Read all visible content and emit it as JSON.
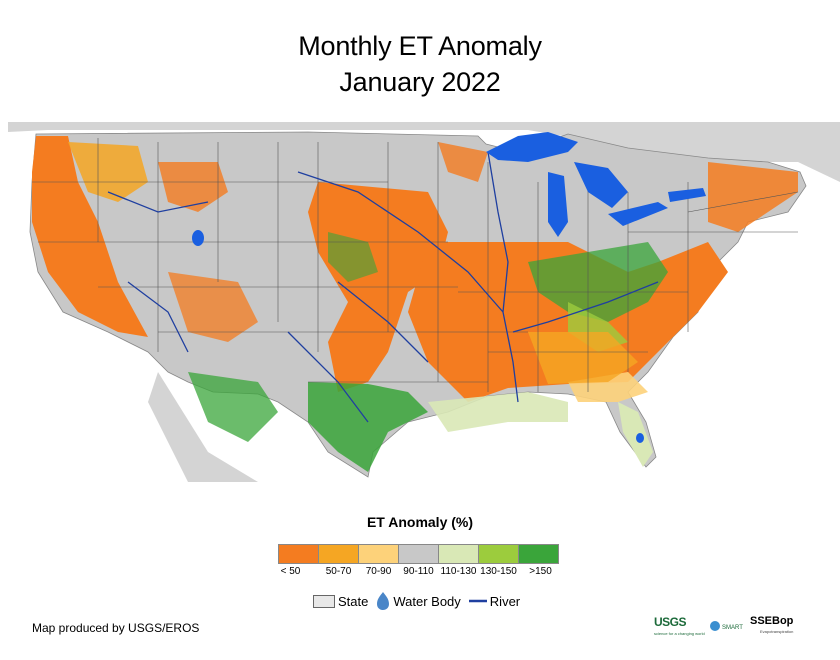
{
  "title": {
    "line1": "Monthly ET Anomaly",
    "line2": "January 2022"
  },
  "legend": {
    "title": "ET Anomaly (%)",
    "classes": [
      {
        "label": "< 50",
        "color": "#f47c20"
      },
      {
        "label": "50-70",
        "color": "#f5a623"
      },
      {
        "label": "70-90",
        "color": "#fdd27a"
      },
      {
        "label": "90-110",
        "color": "#c8c8c8"
      },
      {
        "label": "110-130",
        "color": "#d9e8b6"
      },
      {
        "label": "130-150",
        "color": "#9ccc3d"
      },
      {
        "label": ">150",
        "color": "#3aa53a"
      }
    ]
  },
  "reference": {
    "state_label": "State",
    "water_label": "Water Body",
    "river_label": "River",
    "water_color": "#1a5fe0",
    "river_color": "#1f3fa0"
  },
  "credit": "Map produced by USGS/EROS",
  "logos": {
    "usgs": "USGS",
    "usgs_tagline": "science for a changing world",
    "smart": "WaterSMART",
    "ssebop": "SSEBop",
    "ssebop_tagline": "Evapotranspiration"
  },
  "colors": {
    "background_land": "#c8c8c8",
    "canada_mexico": "#d4d4d4",
    "state_lines": "#555555"
  }
}
